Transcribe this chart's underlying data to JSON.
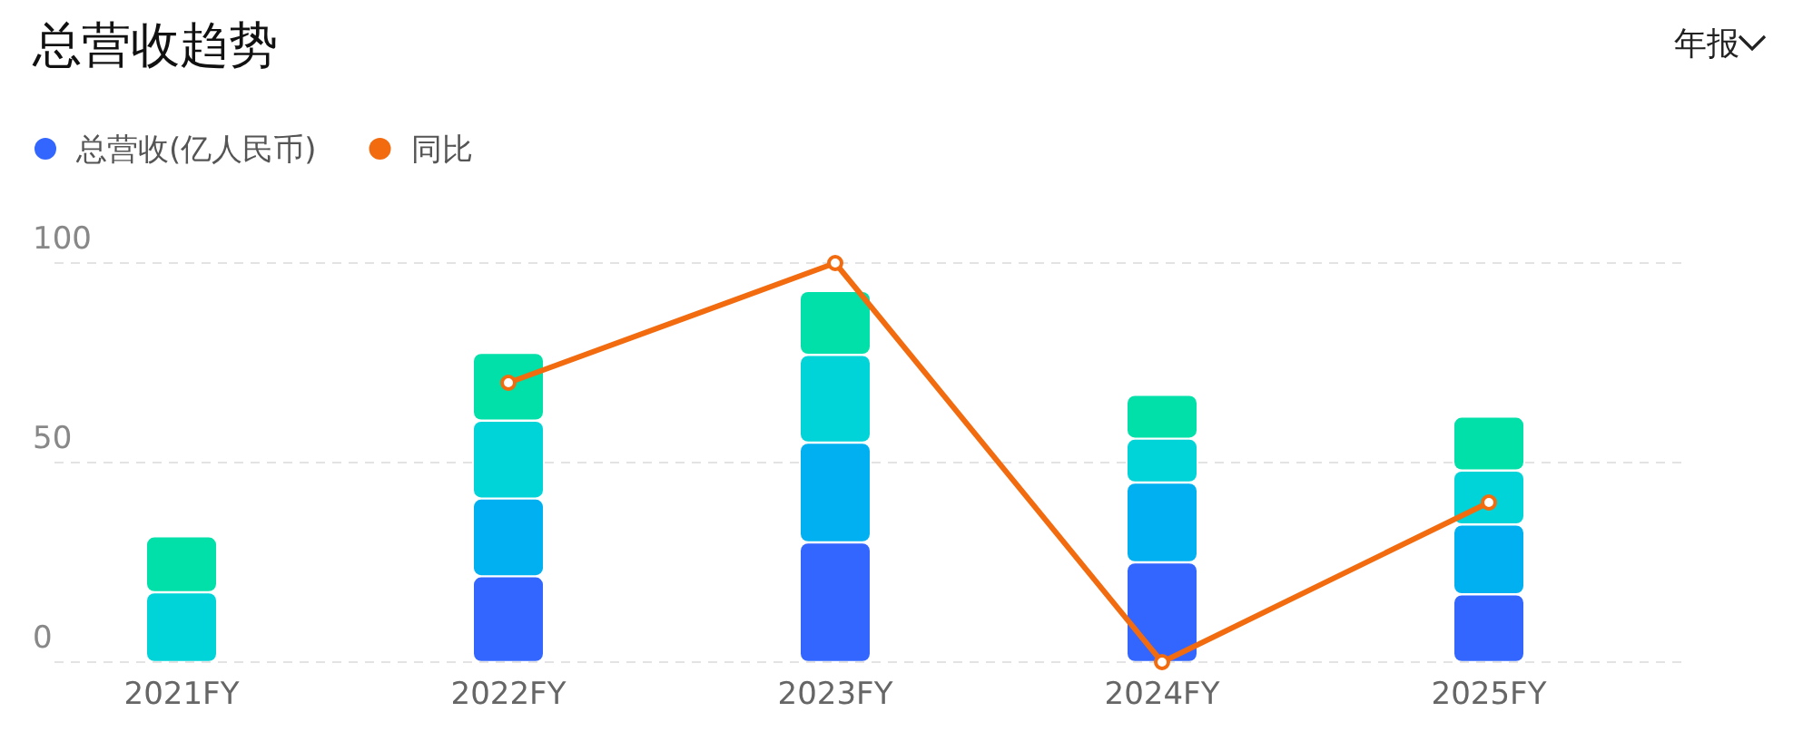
{
  "chart_data": {
    "type": "bar",
    "title": "总营收趋势",
    "stacked": true,
    "categories": [
      "2021FY",
      "2022FY",
      "2023FY",
      "2024FY",
      "2025FY"
    ],
    "series": [
      {
        "name": "总营收(亿人民币)",
        "color": "#3366ff",
        "values": [
          null,
          21.5,
          30,
          25,
          17
        ]
      },
      {
        "color": "#00b0f0",
        "values": [
          null,
          19.5,
          25,
          20,
          17.5
        ]
      },
      {
        "color": "#00d4d8",
        "values": [
          17.5,
          19.5,
          22,
          11,
          13.5
        ]
      },
      {
        "color": "#00e0a8",
        "values": [
          14,
          17,
          16,
          11,
          13.5
        ]
      },
      {
        "name": "同比",
        "type": "line",
        "color": "#f26b0f",
        "marker": "circle",
        "values": [
          null,
          70,
          100,
          0,
          40
        ]
      }
    ],
    "ylim": [
      0,
      100
    ],
    "yticks": [
      0,
      50,
      100
    ],
    "grid": "y",
    "legend": "top left",
    "annotations": [
      "年报"
    ]
  }
}
